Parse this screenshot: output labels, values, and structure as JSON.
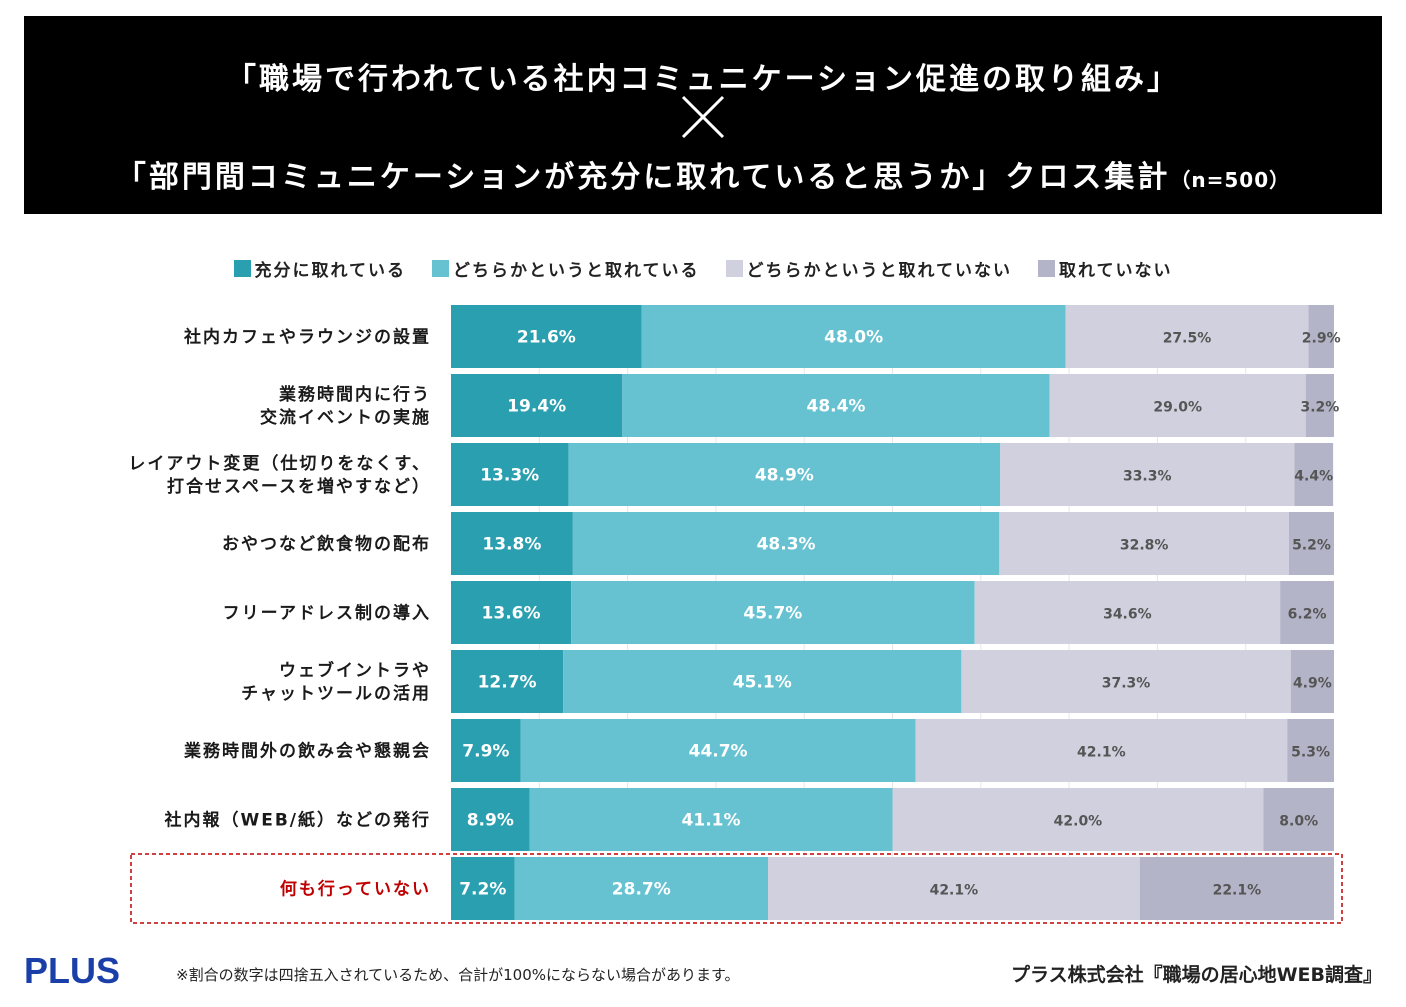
{
  "header": {
    "title_line1": "「職場で行われている社内コミュニケーション促進の取り組み」",
    "title_line2": "「部門間コミュニケーションが充分に取れていると思うか」クロス集計",
    "sample_size": "（n=500）"
  },
  "chart_data": {
    "type": "bar",
    "orientation": "horizontal",
    "stacked": true,
    "percent_scale": [
      0,
      100
    ],
    "categories": [
      "社内カフェやラウンジの設置",
      "業務時間内に行う\n交流イベントの実施",
      "レイアウト変更（仕切りをなくす、\n打合せスペースを増やすなど）",
      "おやつなど飲食物の配布",
      "フリーアドレス制の導入",
      "ウェブイントラや\nチャットツールの活用",
      "業務時間外の飲み会や懇親会",
      "社内報（WEB/紙）などの発行",
      "何も行っていない"
    ],
    "highlight_category": "何も行っていない",
    "highlight_color": "#c00000",
    "series": [
      {
        "name": "充分に取れている",
        "color": "#2a9fb0",
        "label_color": "#ffffff",
        "values": [
          21.6,
          19.4,
          13.3,
          13.8,
          13.6,
          12.7,
          7.9,
          8.9,
          7.2
        ]
      },
      {
        "name": "どちらかというと取れている",
        "color": "#66c2d1",
        "label_color": "#ffffff",
        "values": [
          48.0,
          48.4,
          48.9,
          48.3,
          45.7,
          45.1,
          44.7,
          41.1,
          28.7
        ]
      },
      {
        "name": "どちらかというと取れていない",
        "color": "#d0d0df",
        "label_color": "#555555",
        "values": [
          27.5,
          29.0,
          33.3,
          32.8,
          34.6,
          37.3,
          42.1,
          42.0,
          42.1
        ]
      },
      {
        "name": "取れていない",
        "color": "#b4b4c8",
        "label_color": "#555555",
        "values": [
          2.9,
          3.2,
          4.4,
          5.2,
          6.2,
          4.9,
          5.3,
          8.0,
          22.1
        ]
      }
    ]
  },
  "footer": {
    "logo": "PLUS",
    "note": "※割合の数字は四捨五入されているため、合計が100%にならない場合があります。",
    "source": "プラス株式会社『職場の居心地WEB調査』"
  }
}
